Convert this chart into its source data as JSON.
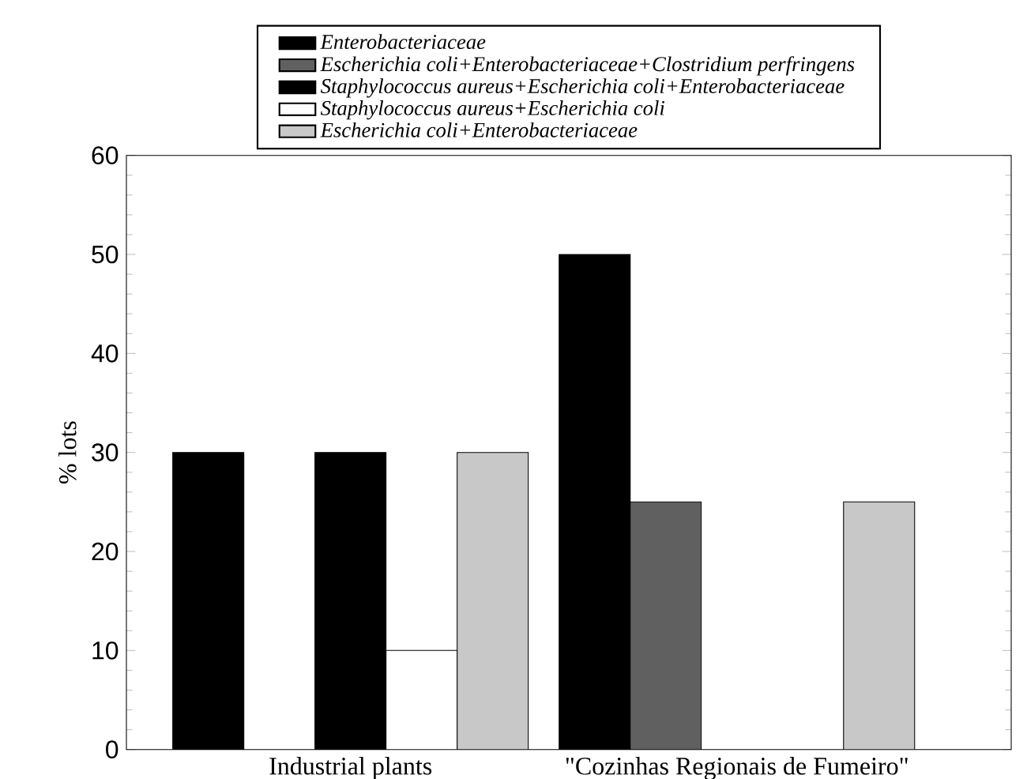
{
  "chart_data": {
    "type": "bar",
    "ylabel": "% lots",
    "categories": [
      "Industrial plants",
      "\"Cozinhas Regionais de Fumeiro\""
    ],
    "series": [
      {
        "name": "Enterobacteriaceae",
        "color": "#000000",
        "values": [
          30,
          50
        ]
      },
      {
        "name": "Escherichia coli+Enterobacteriaceae+Clostridium perfringens",
        "color": "#606060",
        "values": [
          0,
          25
        ]
      },
      {
        "name": "Staphylococcus aureus+Escherichia coli+Enterobacteriaceae",
        "color": "#000000",
        "values": [
          30,
          0
        ]
      },
      {
        "name": "Staphylococcus aureus+Escherichia coli",
        "color": "#ffffff",
        "values": [
          10,
          0
        ]
      },
      {
        "name": "Escherichia coli+Enterobacteriaceae",
        "color": "#c8c8c8",
        "values": [
          30,
          25
        ]
      }
    ],
    "ylim": [
      0,
      60
    ],
    "yticks": [
      0,
      10,
      20,
      30,
      40,
      50,
      60
    ],
    "legend": "top",
    "grid": false
  }
}
